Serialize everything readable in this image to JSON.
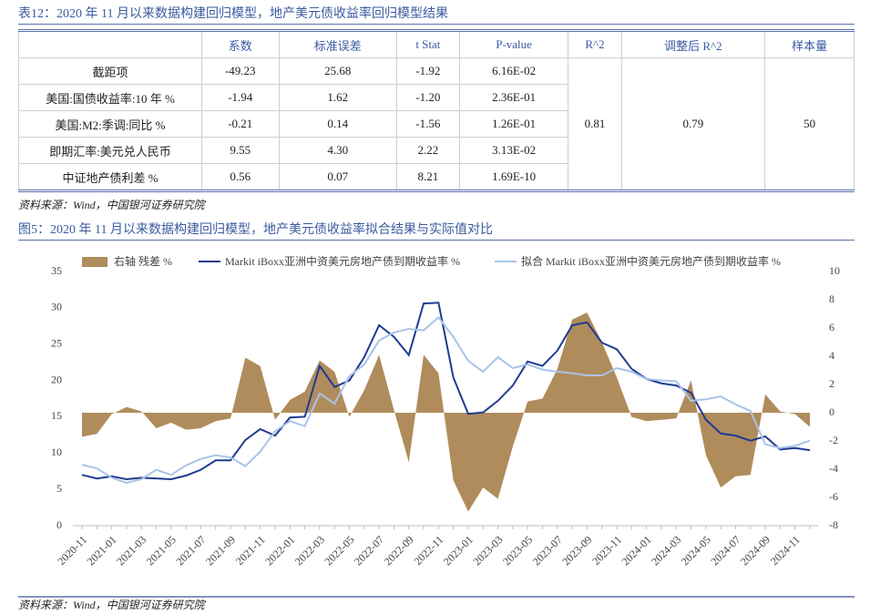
{
  "table_title": "表12：2020 年 11 月以来数据构建回归模型，地产美元债收益率回归模型结果",
  "table": {
    "columns": [
      "系数",
      "标准误差",
      "t Stat",
      "P-value",
      "R^2",
      "调整后 R^2",
      "样本量"
    ],
    "rows": [
      {
        "label": "截距项",
        "cells": [
          "-49.23",
          "25.68",
          "-1.92",
          "6.16E-02"
        ]
      },
      {
        "label": "美国:国债收益率:10 年 %",
        "cells": [
          "-1.94",
          "1.62",
          "-1.20",
          "2.36E-01"
        ]
      },
      {
        "label": "美国:M2:季调:同比 %",
        "cells": [
          "-0.21",
          "0.14",
          "-1.56",
          "1.26E-01"
        ]
      },
      {
        "label": "即期汇率:美元兑人民币",
        "cells": [
          "9.55",
          "4.30",
          "2.22",
          "3.13E-02"
        ]
      },
      {
        "label": "中证地产债利差 %",
        "cells": [
          "0.56",
          "0.07",
          "8.21",
          "1.69E-10"
        ]
      }
    ],
    "merged": [
      "0.81",
      "0.79",
      "50"
    ]
  },
  "table_source": "资料来源：Wind，中国银河证券研究院",
  "chart_data": {
    "type": "line",
    "title": "图5：2020 年 11 月以来数据构建回归模型，地产美元债收益率拟合结果与实际值对比",
    "source": "资料来源：Wind，中国银河证券研究院",
    "categories": [
      "2020-11",
      null,
      "2021-01",
      null,
      "2021-03",
      null,
      "2021-05",
      null,
      "2021-07",
      null,
      "2021-09",
      null,
      "2021-11",
      null,
      "2022-01",
      null,
      "2022-03",
      null,
      "2022-05",
      null,
      "2022-07",
      null,
      "2022-09",
      null,
      "2022-11",
      null,
      "2023-01",
      null,
      "2023-03",
      null,
      "2023-05",
      null,
      "2023-07",
      null,
      "2023-09",
      null,
      "2023-11",
      null,
      "2024-01",
      null,
      "2024-03",
      null,
      "2024-05",
      null,
      "2024-07",
      null,
      "2024-09",
      null,
      "2024-11",
      null
    ],
    "series": [
      {
        "name": "右轴 残差 %",
        "type": "area",
        "axis": "y2",
        "color": "#b08c5c",
        "values": [
          -1.7,
          -1.5,
          -0.1,
          0.4,
          0.1,
          -1.1,
          -0.7,
          -1.2,
          -1.1,
          -0.6,
          -0.4,
          3.9,
          3.3,
          -0.5,
          0.9,
          1.5,
          3.7,
          2.9,
          -0.3,
          1.6,
          4.1,
          0.2,
          -3.5,
          4.1,
          2.8,
          -4.8,
          -7.0,
          -5.3,
          -6.1,
          -2.4,
          0.8,
          1.0,
          3.1,
          6.6,
          7.1,
          5.0,
          2.5,
          -0.3,
          -0.6,
          -0.5,
          -0.4,
          2.3,
          -3.0,
          -5.3,
          -4.5,
          -4.4,
          1.3,
          0.1,
          -0.1,
          -1.0
        ]
      },
      {
        "name": "Markit iBoxx亚洲中资美元房地产债到期收益率 %",
        "type": "line",
        "color": "#1f3b8f",
        "values": [
          7.0,
          6.5,
          6.8,
          6.4,
          6.6,
          6.5,
          6.4,
          6.9,
          7.7,
          9.0,
          9.0,
          11.8,
          13.3,
          12.4,
          14.9,
          15.0,
          22.0,
          19.1,
          20.0,
          23.2,
          27.6,
          26.0,
          23.5,
          30.6,
          30.7,
          20.4,
          15.4,
          15.6,
          17.2,
          19.3,
          22.6,
          22.0,
          24.1,
          27.6,
          28.0,
          25.2,
          24.3,
          21.6,
          20.2,
          19.6,
          19.3,
          18.3,
          14.6,
          12.7,
          12.4,
          11.7,
          12.3,
          10.5,
          10.7,
          10.4
        ]
      },
      {
        "name": "拟合 Markit iBoxx亚洲中资美元房地产债到期收益率 %",
        "type": "line",
        "color": "#a9c3e8",
        "values": [
          8.4,
          7.9,
          6.6,
          5.9,
          6.4,
          7.7,
          7.0,
          8.3,
          9.2,
          9.7,
          9.4,
          8.2,
          10.2,
          13.0,
          14.4,
          13.7,
          18.2,
          16.8,
          20.6,
          22.2,
          25.5,
          26.6,
          27.1,
          26.9,
          28.7,
          26.0,
          22.7,
          21.2,
          23.2,
          21.7,
          22.2,
          21.5,
          21.2,
          21.0,
          20.7,
          20.7,
          21.7,
          21.2,
          20.2,
          20.0,
          19.9,
          17.2,
          17.4,
          17.8,
          16.7,
          15.8,
          11.2,
          10.7,
          11.0,
          11.7
        ]
      }
    ],
    "ylim": [
      0,
      35
    ],
    "yticks": [
      0,
      5,
      10,
      15,
      20,
      25,
      30,
      35
    ],
    "y2lim": [
      -8,
      10
    ],
    "y2ticks": [
      -8,
      -6,
      -4,
      -2,
      0,
      2,
      4,
      6,
      8,
      10
    ],
    "grid": false
  }
}
